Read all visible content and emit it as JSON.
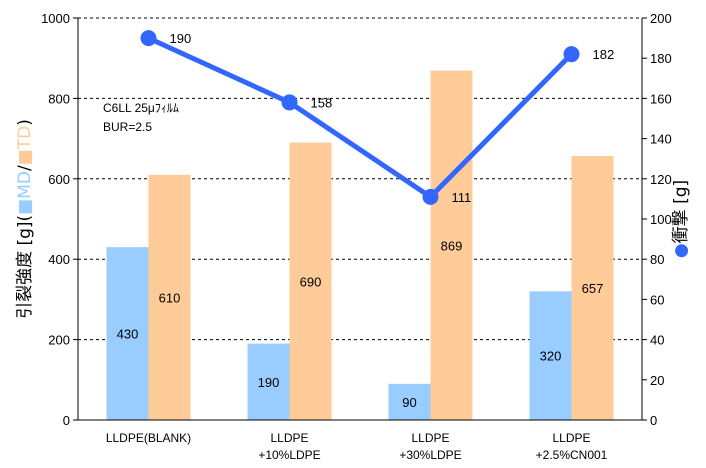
{
  "chart_data": {
    "type": "bar",
    "categories": [
      [
        "LLDPE(BLANK)"
      ],
      [
        "LLDPE",
        "+10%LDPE"
      ],
      [
        "LLDPE",
        "+30%LDPE"
      ],
      [
        "LLDPE",
        "+2.5%CN001"
      ]
    ],
    "series": [
      {
        "name": "MD",
        "type": "bar",
        "axis": "left",
        "values": [
          430,
          190,
          90,
          320
        ]
      },
      {
        "name": "TD",
        "type": "bar",
        "axis": "left",
        "values": [
          610,
          690,
          869,
          657
        ]
      },
      {
        "name": "衝撃",
        "type": "line",
        "axis": "right",
        "values": [
          190,
          158,
          111,
          182
        ]
      }
    ],
    "ylim_left": [
      0,
      1000
    ],
    "yticks_left": [
      0,
      200,
      400,
      600,
      800,
      1000
    ],
    "ylim_right": [
      0,
      200
    ],
    "yticks_right": [
      0,
      20,
      40,
      60,
      80,
      100,
      120,
      140,
      160,
      180,
      200
    ],
    "ylabel_left": {
      "prefix": "引裂強度 [g](",
      "md": "MD",
      "sep": "/",
      "td": "TD",
      "suffix": ")"
    },
    "ylabel_right": {
      "marker": "●",
      "text": "衝撃 [g]"
    },
    "annotation": [
      "C6LL 25μﾌｨﾙﾑ",
      "BUR=2.5"
    ],
    "grid": "horizontal-dashed",
    "colors": {
      "md": "#99CCFF",
      "td": "#FFCC99",
      "line": "#3366FF"
    }
  }
}
